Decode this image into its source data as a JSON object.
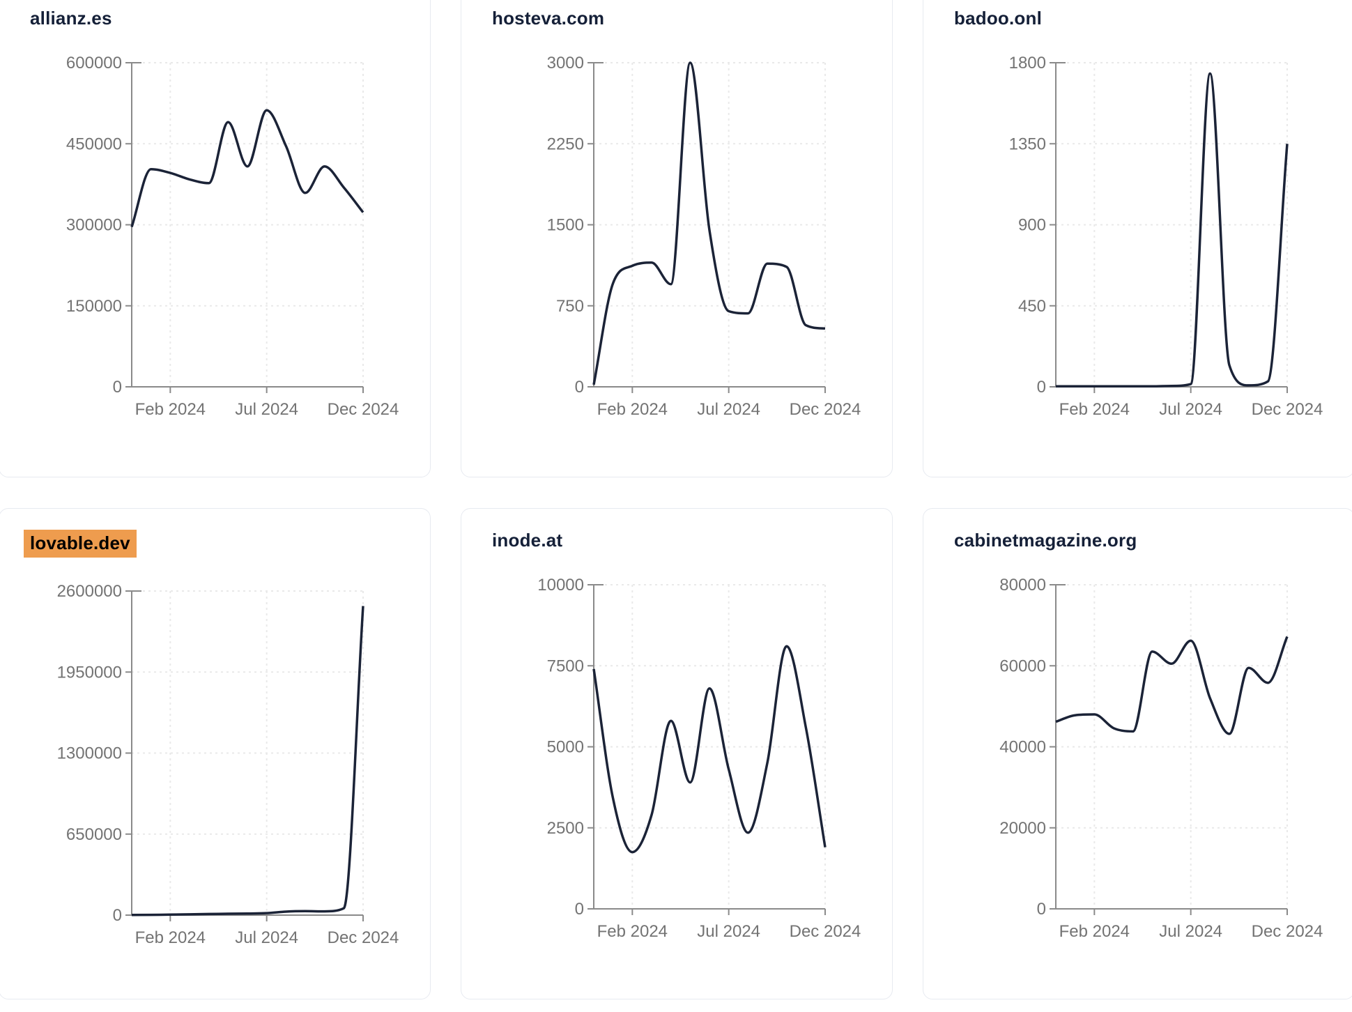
{
  "palette": {
    "line_color": "#1b2337",
    "axis_color": "#8a8a8a",
    "grid_color": "#e9e9e9",
    "tick_label_color": "#737373",
    "title_color": "#152038",
    "highlight_bg": "#ee9c4e",
    "highlight_text": "#000000",
    "card_bg": "#ffffff",
    "card_border": "#e7eaf0"
  },
  "x_axis": {
    "tick_labels": [
      "Feb 2024",
      "Jul 2024",
      "Dec 2024"
    ],
    "tick_indices": [
      2,
      7,
      12
    ]
  },
  "chart_data": [
    {
      "type": "line",
      "title": "allianz.es",
      "highlighted": false,
      "x": [
        "Dec 2023",
        "Jan 2024",
        "Feb 2024",
        "Mar 2024",
        "Apr 2024",
        "May 2024",
        "Jun 2024",
        "Jul 2024",
        "Aug 2024",
        "Sep 2024",
        "Oct 2024",
        "Nov 2024",
        "Dec 2024"
      ],
      "values": [
        296000,
        403000,
        396000,
        384000,
        377000,
        490000,
        408000,
        512000,
        446000,
        359000,
        408000,
        369000,
        323000
      ],
      "ylim": [
        0,
        600000
      ],
      "yticks": [
        0,
        150000,
        300000,
        450000,
        600000
      ],
      "xtick_labels": [
        "Feb 2024",
        "Jul 2024",
        "Dec 2024"
      ],
      "grid": true,
      "legend": "none"
    },
    {
      "type": "line",
      "title": "hosteva.com",
      "highlighted": false,
      "x": [
        "Dec 2023",
        "Jan 2024",
        "Feb 2024",
        "Mar 2024",
        "Apr 2024",
        "May 2024",
        "Jun 2024",
        "Jul 2024",
        "Aug 2024",
        "Sep 2024",
        "Oct 2024",
        "Nov 2024",
        "Dec 2024"
      ],
      "values": [
        20,
        960,
        1120,
        1150,
        950,
        3000,
        1450,
        700,
        680,
        1140,
        1110,
        570,
        540
      ],
      "ylim": [
        0,
        3000
      ],
      "yticks": [
        0,
        750,
        1500,
        2250,
        3000
      ],
      "xtick_labels": [
        "Feb 2024",
        "Jul 2024",
        "Dec 2024"
      ],
      "grid": true,
      "legend": "none"
    },
    {
      "type": "line",
      "title": "badoo.onl",
      "highlighted": false,
      "x": [
        "Dec 2023",
        "Jan 2024",
        "Feb 2024",
        "Mar 2024",
        "Apr 2024",
        "May 2024",
        "Jun 2024",
        "Jul 2024",
        "Aug 2024",
        "Sep 2024",
        "Oct 2024",
        "Nov 2024",
        "Dec 2024"
      ],
      "values": [
        3,
        3,
        3,
        3,
        3,
        3,
        5,
        15,
        1740,
        120,
        8,
        30,
        1350
      ],
      "ylim": [
        0,
        1800
      ],
      "yticks": [
        0,
        450,
        900,
        1350,
        1800
      ],
      "xtick_labels": [
        "Feb 2024",
        "Jul 2024",
        "Dec 2024"
      ],
      "grid": true,
      "legend": "none"
    },
    {
      "type": "line",
      "title": "lovable.dev",
      "highlighted": true,
      "x": [
        "Dec 2023",
        "Jan 2024",
        "Feb 2024",
        "Mar 2024",
        "Apr 2024",
        "May 2024",
        "Jun 2024",
        "Jul 2024",
        "Aug 2024",
        "Sep 2024",
        "Oct 2024",
        "Nov 2024",
        "Dec 2024"
      ],
      "values": [
        1500,
        2500,
        4000,
        6000,
        9000,
        11000,
        13000,
        16000,
        28000,
        32000,
        30000,
        55000,
        2480000
      ],
      "ylim": [
        0,
        2600000
      ],
      "yticks": [
        0,
        650000,
        1300000,
        1950000,
        2600000
      ],
      "xtick_labels": [
        "Feb 2024",
        "Jul 2024",
        "Dec 2024"
      ],
      "grid": true,
      "legend": "none"
    },
    {
      "type": "line",
      "title": "inode.at",
      "highlighted": false,
      "x": [
        "Dec 2023",
        "Jan 2024",
        "Feb 2024",
        "Mar 2024",
        "Apr 2024",
        "May 2024",
        "Jun 2024",
        "Jul 2024",
        "Aug 2024",
        "Sep 2024",
        "Oct 2024",
        "Nov 2024",
        "Dec 2024"
      ],
      "values": [
        7400,
        3400,
        1750,
        2900,
        5800,
        3900,
        6800,
        4300,
        2350,
        4500,
        8100,
        5600,
        1900
      ],
      "ylim": [
        0,
        10000
      ],
      "yticks": [
        0,
        2500,
        5000,
        7500,
        10000
      ],
      "xtick_labels": [
        "Feb 2024",
        "Jul 2024",
        "Dec 2024"
      ],
      "grid": true,
      "legend": "none"
    },
    {
      "type": "line",
      "title": "cabinetmagazine.org",
      "highlighted": false,
      "x": [
        "Dec 2023",
        "Jan 2024",
        "Feb 2024",
        "Mar 2024",
        "Apr 2024",
        "May 2024",
        "Jun 2024",
        "Jul 2024",
        "Aug 2024",
        "Sep 2024",
        "Oct 2024",
        "Nov 2024",
        "Dec 2024"
      ],
      "values": [
        46200,
        47800,
        48000,
        44600,
        43800,
        63500,
        60500,
        66200,
        52000,
        43200,
        59500,
        55800,
        67200
      ],
      "ylim": [
        0,
        80000
      ],
      "yticks": [
        0,
        20000,
        40000,
        60000,
        80000
      ],
      "xtick_labels": [
        "Feb 2024",
        "Jul 2024",
        "Dec 2024"
      ],
      "grid": true,
      "legend": "none"
    }
  ]
}
